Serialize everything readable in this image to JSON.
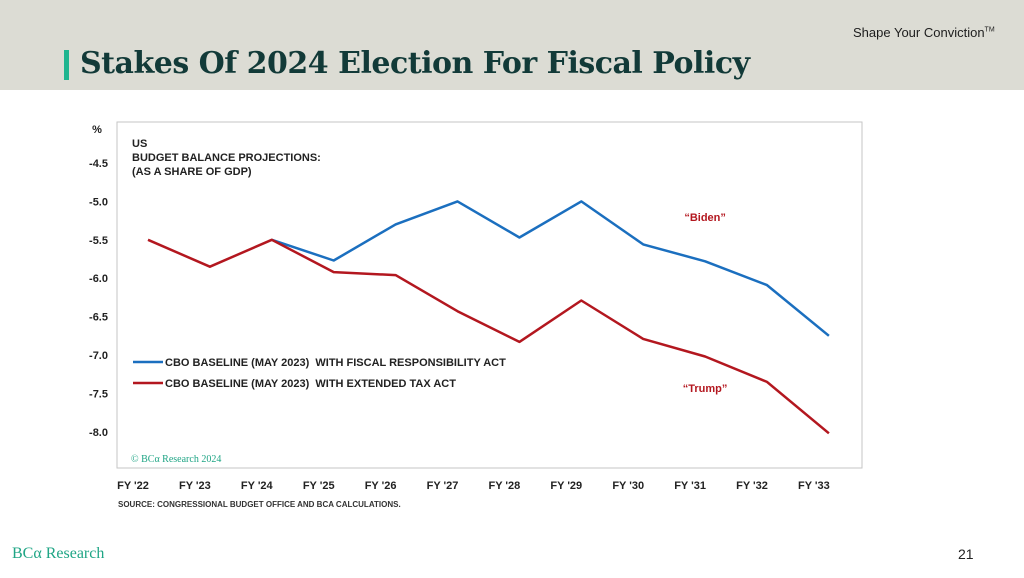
{
  "header": {
    "title": "Stakes Of 2024 Election For Fiscal Policy",
    "tagline": "Shape Your Conviction",
    "tagline_tm": "TM"
  },
  "footer": {
    "logo": "BCα Research",
    "page_number": "21"
  },
  "chart_data": {
    "type": "line",
    "title_lines": [
      "US",
      "BUDGET BALANCE PROJECTIONS:",
      "(AS A SHARE OF GDP)"
    ],
    "ylabel": "%",
    "xlabel": "",
    "categories": [
      "FY '22",
      "FY '23",
      "FY '24",
      "FY '25",
      "FY '26",
      "FY '27",
      "FY '28",
      "FY '29",
      "FY '30",
      "FY '31",
      "FY '32",
      "FY '33"
    ],
    "ylim": [
      -8.5,
      -4.0
    ],
    "yticks": [
      -4.5,
      -5.0,
      -5.5,
      -6.0,
      -6.5,
      -7.0,
      -7.5,
      -8.0
    ],
    "ytick_labels": [
      "-4.5",
      "-5.0",
      "-5.5",
      "-6.0",
      "-6.5",
      "-7.0",
      "-7.5",
      "-8.0"
    ],
    "series": [
      {
        "name": "CBO BASELINE (MAY 2023)  WITH FISCAL RESPONSIBILITY ACT",
        "color": "#1b6fbf",
        "start_index": 2,
        "values": [
          null,
          null,
          -5.5,
          -5.77,
          -5.3,
          -5.0,
          -5.47,
          -5.0,
          -5.56,
          -5.78,
          -6.09,
          -6.75
        ]
      },
      {
        "name": "CBO BASELINE (MAY 2023)  WITH EXTENDED TAX ACT",
        "color": "#b3171f",
        "values": [
          -5.5,
          -5.85,
          -5.5,
          -5.92,
          -5.96,
          -6.43,
          -6.83,
          -6.29,
          -6.79,
          -7.02,
          -7.35,
          -8.02
        ]
      }
    ],
    "annotations": [
      {
        "text": "“Biden”",
        "x_index": 9.0,
        "y": -5.2,
        "color": "#b3171f"
      },
      {
        "text": "“Trump”",
        "x_index": 9.0,
        "y": -7.43,
        "color": "#b3171f"
      }
    ],
    "legend_placement": "lower-left",
    "watermark": "© BCα Research 2024",
    "source": "SOURCE: CONGRESSIONAL BUDGET OFFICE AND BCA CALCULATIONS.",
    "grid": false
  }
}
